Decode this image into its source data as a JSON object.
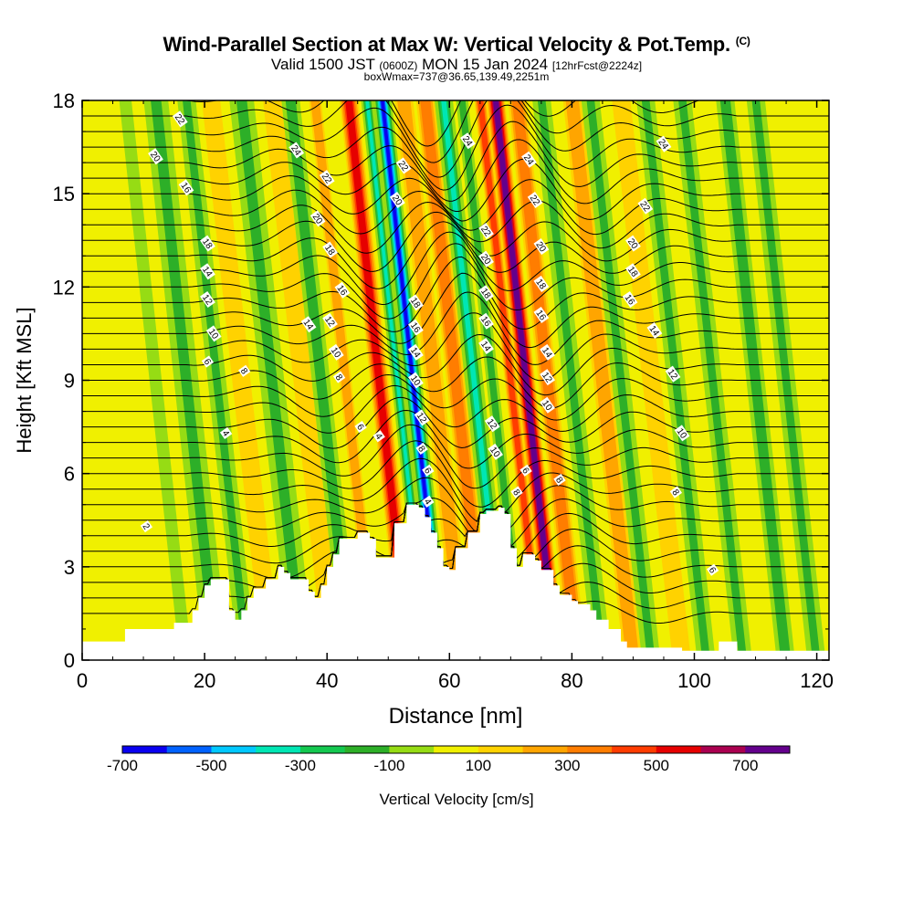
{
  "header": {
    "title_main": "Wind-Parallel Section at Max W: Vertical Velocity & Pot.Temp.",
    "title_mark": "(C)",
    "valid_prefix": "Valid 1500 JST",
    "valid_zulu": "(0600Z)",
    "valid_date": "MON 15 Jan 2024",
    "forecast": "[12hrFcst@2224z]",
    "box_info": "boxWmax=737@36.65,139.49,2251m"
  },
  "chart_data": {
    "type": "heatmap",
    "title": "Wind-Parallel Section at Max W: Vertical Velocity & Pot.Temp.",
    "xlabel": "Distance [nm]",
    "ylabel": "Height [Kft MSL]",
    "xlim": [
      0,
      122
    ],
    "ylim": [
      0,
      18
    ],
    "x_ticks": [
      0,
      20,
      40,
      60,
      80,
      100,
      120
    ],
    "y_ticks": [
      0,
      3,
      6,
      9,
      12,
      15,
      18
    ],
    "colorbar": {
      "label": "Vertical Velocity [cm/s]",
      "tick_labels": [
        "-700",
        "-500",
        "-300",
        "-100",
        "100",
        "300",
        "500",
        "700"
      ],
      "tick_values": [
        -700,
        -500,
        -300,
        -100,
        100,
        300,
        500,
        700
      ],
      "bounds": [
        -700,
        -600,
        -500,
        -400,
        -300,
        -200,
        -100,
        0,
        100,
        200,
        300,
        400,
        500,
        600,
        700,
        800
      ],
      "colors": [
        "#0a00f0",
        "#0062ff",
        "#00c8ff",
        "#00e6b4",
        "#14c850",
        "#2daf28",
        "#96dc14",
        "#f0f000",
        "#ffd200",
        "#ffa500",
        "#ff7d00",
        "#ff3c00",
        "#e60000",
        "#aa0050",
        "#64008c"
      ]
    },
    "velocity_bands": [
      {
        "x": 12,
        "w": 2,
        "value": -80
      },
      {
        "x": 17,
        "w": 4,
        "value": -120
      },
      {
        "x": 22,
        "w": 3,
        "value": -180
      },
      {
        "x": 26,
        "w": 3,
        "value": 120
      },
      {
        "x": 31,
        "w": 4,
        "value": -150
      },
      {
        "x": 36,
        "w": 3,
        "value": 150
      },
      {
        "x": 39,
        "w": 3,
        "value": -200
      },
      {
        "x": 43,
        "w": 2,
        "value": 250
      },
      {
        "x": 48.5,
        "w": 3,
        "value": 550
      },
      {
        "x": 51.5,
        "w": 2,
        "value": -350
      },
      {
        "x": 54,
        "w": 3,
        "value": -650
      },
      {
        "x": 57.5,
        "w": 3,
        "value": 200
      },
      {
        "x": 61,
        "w": 3,
        "value": 350
      },
      {
        "x": 64,
        "w": 3,
        "value": -350
      },
      {
        "x": 67,
        "w": 2,
        "value": -200
      },
      {
        "x": 70,
        "w": 2,
        "value": 450
      },
      {
        "x": 72.5,
        "w": 3,
        "value": 737
      },
      {
        "x": 76,
        "w": 3,
        "value": 300
      },
      {
        "x": 80,
        "w": 3,
        "value": -150
      },
      {
        "x": 85,
        "w": 3,
        "value": 200
      },
      {
        "x": 88,
        "w": 3,
        "value": -150
      },
      {
        "x": 93,
        "w": 3,
        "value": 150
      },
      {
        "x": 97,
        "w": 3,
        "value": -150
      },
      {
        "x": 103,
        "w": 3,
        "value": -120
      },
      {
        "x": 110,
        "w": 3,
        "value": -200
      },
      {
        "x": 115,
        "w": 3,
        "value": -120
      }
    ],
    "terrain": [
      [
        0,
        0.6
      ],
      [
        6,
        0.6
      ],
      [
        7,
        1.0
      ],
      [
        14,
        1.0
      ],
      [
        15,
        1.2
      ],
      [
        17,
        1.2
      ],
      [
        18,
        1.6
      ],
      [
        19,
        2.0
      ],
      [
        20,
        2.4
      ],
      [
        21,
        2.6
      ],
      [
        23,
        2.6
      ],
      [
        24,
        1.6
      ],
      [
        25,
        1.3
      ],
      [
        26,
        1.6
      ],
      [
        27,
        2.0
      ],
      [
        28,
        2.3
      ],
      [
        30,
        2.6
      ],
      [
        32,
        3.0
      ],
      [
        33,
        2.8
      ],
      [
        34,
        2.6
      ],
      [
        36,
        2.6
      ],
      [
        37,
        2.2
      ],
      [
        38,
        2.0
      ],
      [
        39,
        2.4
      ],
      [
        40,
        3.0
      ],
      [
        41,
        3.4
      ],
      [
        42,
        3.9
      ],
      [
        44,
        3.9
      ],
      [
        45,
        4.1
      ],
      [
        47,
        3.9
      ],
      [
        48,
        3.3
      ],
      [
        50,
        3.3
      ],
      [
        51,
        4.4
      ],
      [
        53,
        5.0
      ],
      [
        55,
        4.9
      ],
      [
        56,
        4.6
      ],
      [
        57,
        4.1
      ],
      [
        58,
        3.6
      ],
      [
        59,
        3.0
      ],
      [
        60,
        2.9
      ],
      [
        61,
        3.6
      ],
      [
        63,
        4.1
      ],
      [
        65,
        4.7
      ],
      [
        66,
        4.8
      ],
      [
        68,
        4.9
      ],
      [
        69,
        4.7
      ],
      [
        70,
        3.6
      ],
      [
        71,
        3.0
      ],
      [
        72,
        3.4
      ],
      [
        73,
        3.4
      ],
      [
        74,
        3.2
      ],
      [
        75,
        2.9
      ],
      [
        77,
        2.4
      ],
      [
        78,
        2.1
      ],
      [
        80,
        1.9
      ],
      [
        81,
        1.8
      ],
      [
        83,
        1.6
      ],
      [
        84,
        1.3
      ],
      [
        86,
        1.0
      ],
      [
        88,
        0.6
      ],
      [
        89,
        0.4
      ],
      [
        97,
        0.4
      ],
      [
        98,
        0.3
      ],
      [
        103,
        0.3
      ],
      [
        104,
        0.6
      ],
      [
        106,
        0.6
      ],
      [
        107,
        0.3
      ],
      [
        122,
        0.3
      ]
    ],
    "contour_labels": [
      {
        "x": 16,
        "y": 17.4,
        "text": "22"
      },
      {
        "x": 12,
        "y": 16.2,
        "text": "20"
      },
      {
        "x": 17,
        "y": 15.2,
        "text": "16"
      },
      {
        "x": 20.5,
        "y": 13.4,
        "text": "18"
      },
      {
        "x": 20.5,
        "y": 12.5,
        "text": "14"
      },
      {
        "x": 20.5,
        "y": 11.6,
        "text": "12"
      },
      {
        "x": 21.5,
        "y": 10.5,
        "text": "10"
      },
      {
        "x": 20.5,
        "y": 9.6,
        "text": "6"
      },
      {
        "x": 26.5,
        "y": 9.3,
        "text": "8"
      },
      {
        "x": 23.5,
        "y": 7.3,
        "text": "4"
      },
      {
        "x": 10.5,
        "y": 4.3,
        "text": "2"
      },
      {
        "x": 35,
        "y": 16.4,
        "text": "24"
      },
      {
        "x": 40,
        "y": 15.5,
        "text": "22"
      },
      {
        "x": 38.5,
        "y": 14.2,
        "text": "20"
      },
      {
        "x": 40.5,
        "y": 13.2,
        "text": "18"
      },
      {
        "x": 42.5,
        "y": 11.9,
        "text": "16"
      },
      {
        "x": 37,
        "y": 10.8,
        "text": "14"
      },
      {
        "x": 40.5,
        "y": 10.9,
        "text": "12"
      },
      {
        "x": 41.5,
        "y": 9.9,
        "text": "10"
      },
      {
        "x": 42,
        "y": 9.1,
        "text": "8"
      },
      {
        "x": 45.5,
        "y": 7.5,
        "text": "6"
      },
      {
        "x": 48.5,
        "y": 7.2,
        "text": "4"
      },
      {
        "x": 52.5,
        "y": 15.9,
        "text": "22"
      },
      {
        "x": 51.5,
        "y": 14.8,
        "text": "20"
      },
      {
        "x": 54.5,
        "y": 11.5,
        "text": "18"
      },
      {
        "x": 54.5,
        "y": 10.7,
        "text": "16"
      },
      {
        "x": 54.5,
        "y": 9.9,
        "text": "14"
      },
      {
        "x": 54.5,
        "y": 9.0,
        "text": "10"
      },
      {
        "x": 55.5,
        "y": 7.8,
        "text": "12"
      },
      {
        "x": 55.5,
        "y": 6.8,
        "text": "8"
      },
      {
        "x": 56.5,
        "y": 6.1,
        "text": "6"
      },
      {
        "x": 56.5,
        "y": 5.1,
        "text": "4"
      },
      {
        "x": 63,
        "y": 16.7,
        "text": "24"
      },
      {
        "x": 66,
        "y": 13.8,
        "text": "22"
      },
      {
        "x": 66,
        "y": 12.9,
        "text": "20"
      },
      {
        "x": 66,
        "y": 11.8,
        "text": "18"
      },
      {
        "x": 66,
        "y": 10.9,
        "text": "16"
      },
      {
        "x": 66,
        "y": 10.1,
        "text": "14"
      },
      {
        "x": 67,
        "y": 7.6,
        "text": "12"
      },
      {
        "x": 67.5,
        "y": 6.7,
        "text": "10"
      },
      {
        "x": 71,
        "y": 5.4,
        "text": "8"
      },
      {
        "x": 72.5,
        "y": 6.1,
        "text": "6"
      },
      {
        "x": 73,
        "y": 16.1,
        "text": "24"
      },
      {
        "x": 74,
        "y": 14.8,
        "text": "22"
      },
      {
        "x": 75,
        "y": 13.3,
        "text": "20"
      },
      {
        "x": 75,
        "y": 12.1,
        "text": "18"
      },
      {
        "x": 75,
        "y": 11.1,
        "text": "16"
      },
      {
        "x": 76,
        "y": 9.9,
        "text": "14"
      },
      {
        "x": 76,
        "y": 9.1,
        "text": "12"
      },
      {
        "x": 76,
        "y": 8.2,
        "text": "10"
      },
      {
        "x": 78,
        "y": 5.8,
        "text": "8"
      },
      {
        "x": 95,
        "y": 16.6,
        "text": "24"
      },
      {
        "x": 92,
        "y": 14.6,
        "text": "22"
      },
      {
        "x": 90,
        "y": 13.4,
        "text": "20"
      },
      {
        "x": 90,
        "y": 12.5,
        "text": "18"
      },
      {
        "x": 89.5,
        "y": 11.6,
        "text": "16"
      },
      {
        "x": 93.5,
        "y": 10.6,
        "text": "14"
      },
      {
        "x": 96.5,
        "y": 9.2,
        "text": "12"
      },
      {
        "x": 98,
        "y": 7.3,
        "text": "10"
      },
      {
        "x": 97,
        "y": 5.4,
        "text": "8"
      },
      {
        "x": 103,
        "y": 2.9,
        "text": "6"
      }
    ]
  }
}
